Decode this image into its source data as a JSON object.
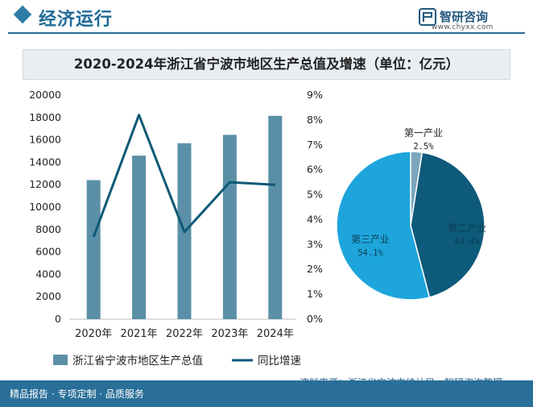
{
  "header": {
    "section_title": "经济运行",
    "logo_text": "智研咨询",
    "logo_url": "www.chyxx.com"
  },
  "title": "2020-2024年浙江省宁波市地区生产总值及增速（单位：亿元）",
  "footer": {
    "tagline": "精品报告 · 专项定制 · 品质服务",
    "source": "资料来源：浙江省宁波市统计局、智研咨询整理"
  },
  "colors": {
    "bar": "#5b8fa8",
    "line": "#0f5877",
    "pie_primary": "#7aa7bd",
    "pie_secondary": "#0e5a7a",
    "pie_tertiary": "#1da5dc",
    "header": "#2a6f98"
  },
  "chart_data": [
    {
      "type": "bar",
      "categories": [
        "2020年",
        "2021年",
        "2022年",
        "2023年",
        "2024年"
      ],
      "series": [
        {
          "name": "浙江省宁波市地区生产总值",
          "type": "bar",
          "axis": "left",
          "values": [
            12409,
            14595,
            15704,
            16452,
            18148
          ]
        },
        {
          "name": "同比增速",
          "type": "line",
          "axis": "right",
          "values": [
            3.3,
            8.2,
            3.5,
            5.5,
            5.4
          ]
        }
      ],
      "y_left": {
        "min": 0,
        "max": 20000,
        "step": 2000,
        "ticks": [
          "0",
          "2000",
          "4000",
          "6000",
          "8000",
          "10000",
          "12000",
          "14000",
          "16000",
          "18000",
          "20000"
        ]
      },
      "y_right": {
        "min": 0,
        "max": 9,
        "step": 1,
        "ticks": [
          "0%",
          "1%",
          "2%",
          "3%",
          "4%",
          "5%",
          "6%",
          "7%",
          "8%",
          "9%"
        ]
      },
      "legend": [
        "浙江省宁波市地区生产总值",
        "同比增速"
      ],
      "legend_position": "bottom"
    },
    {
      "type": "pie",
      "slices": [
        {
          "label": "第一产业",
          "value": 2.5,
          "value_label": "2.5%"
        },
        {
          "label": "第二产业",
          "value": 43.4,
          "value_label": "43.4%"
        },
        {
          "label": "第三产业",
          "value": 54.1,
          "value_label": "54.1%"
        }
      ]
    }
  ]
}
